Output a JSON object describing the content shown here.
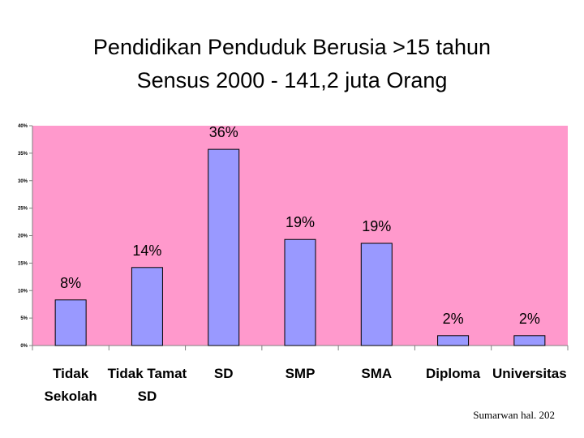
{
  "title": {
    "line1": "Pendidikan Penduduk Berusia >15 tahun",
    "line2": "Sensus 2000 - 141,2 juta Orang"
  },
  "footer": {
    "source": "Sumarwan hal. 202"
  },
  "chart_data": {
    "type": "bar",
    "categories": [
      [
        "Tidak",
        "Sekolah"
      ],
      [
        "Tidak Tamat",
        "SD"
      ],
      [
        "SD"
      ],
      [
        "SMP"
      ],
      [
        "SMA"
      ],
      [
        "Diploma"
      ],
      [
        "Universitas"
      ]
    ],
    "values": [
      8.3,
      14.2,
      35.7,
      19.3,
      18.6,
      1.8,
      1.8
    ],
    "data_labels": [
      "8%",
      "14%",
      "36%",
      "19%",
      "19%",
      "2%",
      "2%"
    ],
    "ylim": [
      0,
      40
    ],
    "yticks": [
      0,
      5,
      10,
      15,
      20,
      25,
      30,
      35,
      40
    ],
    "ytick_labels": [
      "0%",
      "5%",
      "10%",
      "15%",
      "20%",
      "25%",
      "30%",
      "35%",
      "40%"
    ],
    "grid": false,
    "legend": "none",
    "colors": {
      "plot_background": "#ff99cc",
      "bar_fill": "#9999ff",
      "bar_stroke": "#000000",
      "axis": "#808080"
    }
  }
}
